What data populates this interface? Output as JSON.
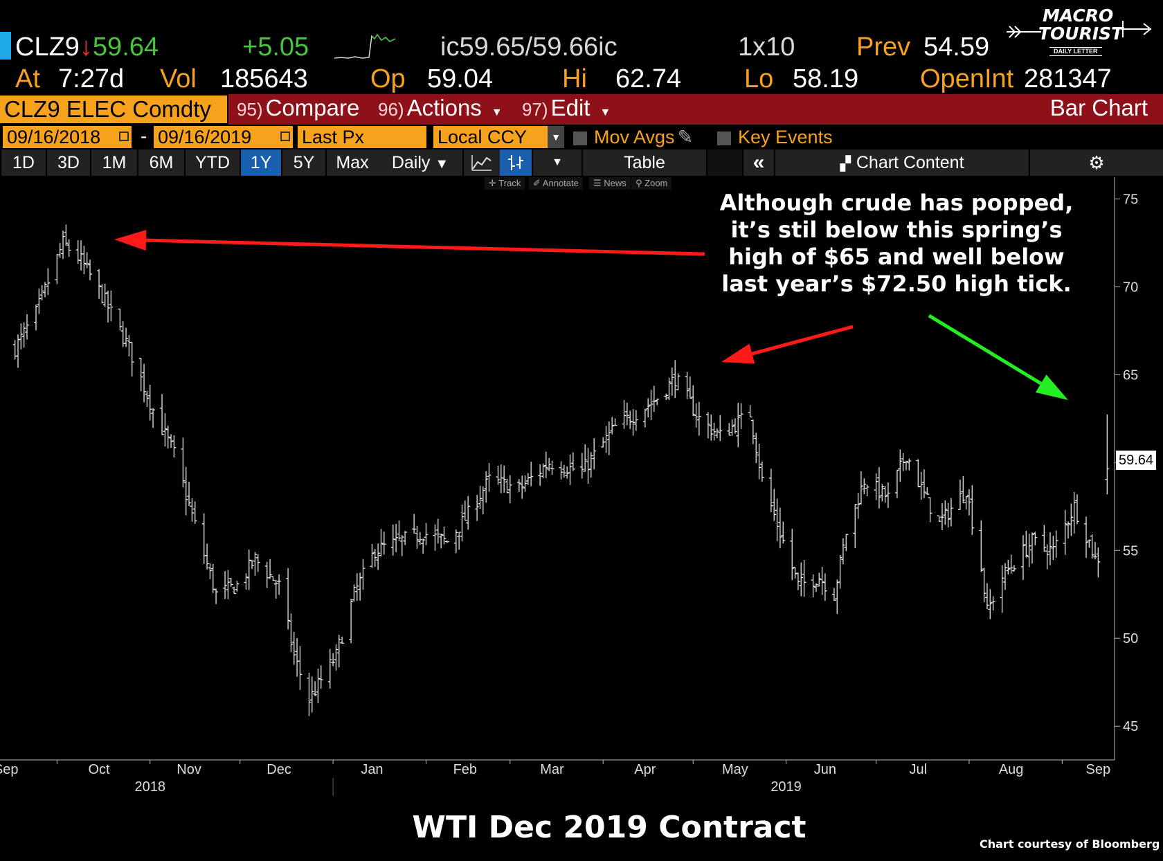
{
  "quote": {
    "ticker": "CLZ9",
    "arrow": "↓",
    "last": "59.64",
    "change": "+5.05",
    "bid_ask": "ic59.65/59.66ic",
    "size": "1x10",
    "prev_label": "Prev",
    "prev": "54.59",
    "at_label": "At",
    "at": "7:27d",
    "vol_label": "Vol",
    "vol": "185643",
    "op_label": "Op",
    "op": "59.04",
    "hi_label": "Hi",
    "hi": "62.74",
    "lo_label": "Lo",
    "lo": "58.19",
    "openint_label": "OpenInt",
    "openint": "281347"
  },
  "logo": {
    "line1": "MACRO",
    "line2": "TOURIST",
    "line3": "DAILY LETTER"
  },
  "toolbar": {
    "security": "CLZ9 ELEC Comdty",
    "compare_num": "95)",
    "compare": "Compare",
    "actions_num": "96)",
    "actions": "Actions",
    "edit_num": "97)",
    "edit": "Edit",
    "chart_type": "Bar Chart",
    "start_date": "09/16/2018",
    "end_date": "09/16/2019",
    "field": "Last Px",
    "currency": "Local CCY",
    "mov_avgs": "Mov Avgs",
    "key_events": "Key Events"
  },
  "ranges": {
    "items": [
      "1D",
      "3D",
      "1M",
      "6M",
      "YTD",
      "1Y",
      "5Y",
      "Max"
    ],
    "selected": "1Y",
    "period": "Daily",
    "table": "Table",
    "chart_content": "Chart Content"
  },
  "chart_tools": [
    "Track",
    "Annotate",
    "News",
    "Zoom"
  ],
  "annotation": {
    "lines": [
      "Although crude has popped,",
      "it’s stil below this spring’s",
      "high of $65 and well below",
      "last year’s $72.50 high tick."
    ]
  },
  "caption": "WTI Dec 2019 Contract",
  "credit": "Chart courtesy of Bloomberg",
  "colors": {
    "amber": "#f7a21d",
    "menu_red": "#8e1019",
    "selected_blue": "#1a5fae",
    "arrow_red": "#ff1a1a",
    "arrow_green": "#22ee22"
  },
  "chart_data": {
    "type": "ohlc-bar",
    "ylim": [
      43,
      76
    ],
    "yticks": [
      45,
      50,
      55,
      60,
      65,
      70,
      75
    ],
    "last_price_label": "59.64",
    "months": [
      "Sep",
      "Oct",
      "Nov",
      "Dec",
      "Jan",
      "Feb",
      "Mar",
      "Apr",
      "May",
      "Jun",
      "Jul",
      "Aug",
      "Sep"
    ],
    "years": [
      "2018",
      "2019"
    ],
    "anchors": [
      [
        "2018-09-17",
        66.5
      ],
      [
        "2018-09-24",
        68.5
      ],
      [
        "2018-10-03",
        72.5
      ],
      [
        "2018-10-09",
        71.5
      ],
      [
        "2018-10-16",
        69.5
      ],
      [
        "2018-10-25",
        66.5
      ],
      [
        "2018-11-02",
        63.0
      ],
      [
        "2018-11-09",
        60.5
      ],
      [
        "2018-11-15",
        57.0
      ],
      [
        "2018-11-23",
        52.5
      ],
      [
        "2018-11-30",
        53.0
      ],
      [
        "2018-12-06",
        54.5
      ],
      [
        "2018-12-14",
        53.0
      ],
      [
        "2018-12-19",
        49.0
      ],
      [
        "2018-12-24",
        46.5
      ],
      [
        "2019-01-02",
        49.0
      ],
      [
        "2019-01-08",
        52.5
      ],
      [
        "2019-01-15",
        55.0
      ],
      [
        "2019-01-31",
        56.0
      ],
      [
        "2019-02-08",
        55.5
      ],
      [
        "2019-02-14",
        56.8
      ],
      [
        "2019-02-22",
        59.0
      ],
      [
        "2019-03-04",
        58.5
      ],
      [
        "2019-03-14",
        60.0
      ],
      [
        "2019-03-25",
        59.5
      ],
      [
        "2019-04-05",
        62.0
      ],
      [
        "2019-04-18",
        63.5
      ],
      [
        "2019-04-25",
        64.8
      ],
      [
        "2019-05-03",
        62.5
      ],
      [
        "2019-05-10",
        61.5
      ],
      [
        "2019-05-20",
        62.8
      ],
      [
        "2019-05-24",
        59.0
      ],
      [
        "2019-05-31",
        55.5
      ],
      [
        "2019-06-05",
        53.0
      ],
      [
        "2019-06-12",
        53.5
      ],
      [
        "2019-06-17",
        52.5
      ],
      [
        "2019-06-21",
        56.0
      ],
      [
        "2019-06-27",
        59.0
      ],
      [
        "2019-07-05",
        58.0
      ],
      [
        "2019-07-11",
        60.5
      ],
      [
        "2019-07-16",
        58.5
      ],
      [
        "2019-07-22",
        56.5
      ],
      [
        "2019-07-31",
        58.5
      ],
      [
        "2019-08-05",
        54.0
      ],
      [
        "2019-08-07",
        51.5
      ],
      [
        "2019-08-12",
        53.5
      ],
      [
        "2019-08-22",
        55.5
      ],
      [
        "2019-08-29",
        55.0
      ],
      [
        "2019-09-05",
        57.5
      ],
      [
        "2019-09-10",
        55.5
      ],
      [
        "2019-09-12",
        54.5
      ],
      [
        "2019-09-13",
        54.59
      ],
      [
        "2019-09-16",
        59.64
      ]
    ],
    "last_bar": {
      "open": 59.04,
      "high": 62.74,
      "low": 58.19,
      "close": 59.64
    }
  }
}
